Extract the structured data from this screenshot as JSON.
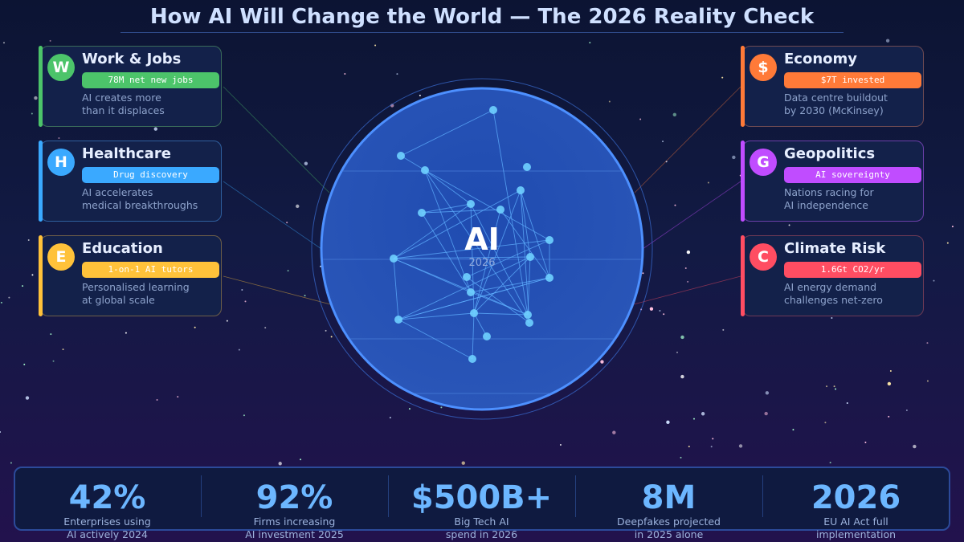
{
  "title": "How AI Will Change the World — The 2026 Reality Check",
  "center": {
    "label": "AI",
    "year": "2026"
  },
  "left_cards": [
    {
      "badge": "W",
      "title": "Work & Jobs",
      "pill": "78M net new jobs",
      "desc": [
        "AI creates more",
        "than it displaces"
      ],
      "color": "#4cc46a",
      "border": "#3a6b5a"
    },
    {
      "badge": "H",
      "title": "Healthcare",
      "pill": "Drug discovery",
      "desc": [
        "AI accelerates",
        "medical breakthroughs"
      ],
      "color": "#3aa9ff",
      "border": "#2f5f9e"
    },
    {
      "badge": "E",
      "title": "Education",
      "pill": "1-on-1 AI tutors",
      "desc": [
        "Personalised learning",
        "at global scale"
      ],
      "color": "#ffc23a",
      "border": "#6e5f48"
    }
  ],
  "right_cards": [
    {
      "badge": "$",
      "title": "Economy",
      "pill": "$7T invested",
      "desc": [
        "Data centre buildout",
        "by 2030 (McKinsey)"
      ],
      "color": "#ff7a38",
      "border": "#6e4a52"
    },
    {
      "badge": "G",
      "title": "Geopolitics",
      "pill": "AI sovereignty",
      "desc": [
        "Nations racing for",
        "AI independence"
      ],
      "color": "#c04cff",
      "border": "#6a3fa8"
    },
    {
      "badge": "C",
      "title": "Climate Risk",
      "pill": "1.6Gt CO2/yr",
      "desc": [
        "AI energy demand",
        "challenges net-zero"
      ],
      "color": "#ff4d62",
      "border": "#6e3a55"
    }
  ],
  "stats": [
    {
      "value": "42%",
      "label": [
        "Enterprises using",
        "AI actively 2024"
      ]
    },
    {
      "value": "92%",
      "label": [
        "Firms increasing",
        "AI investment 2025"
      ]
    },
    {
      "value": "$500B+",
      "label": [
        "Big Tech AI",
        "spend in 2026"
      ]
    },
    {
      "value": "8M",
      "label": [
        "Deepfakes projected",
        "in 2025 alone"
      ]
    },
    {
      "value": "2026",
      "label": [
        "EU AI Act full",
        "implementation"
      ]
    }
  ]
}
